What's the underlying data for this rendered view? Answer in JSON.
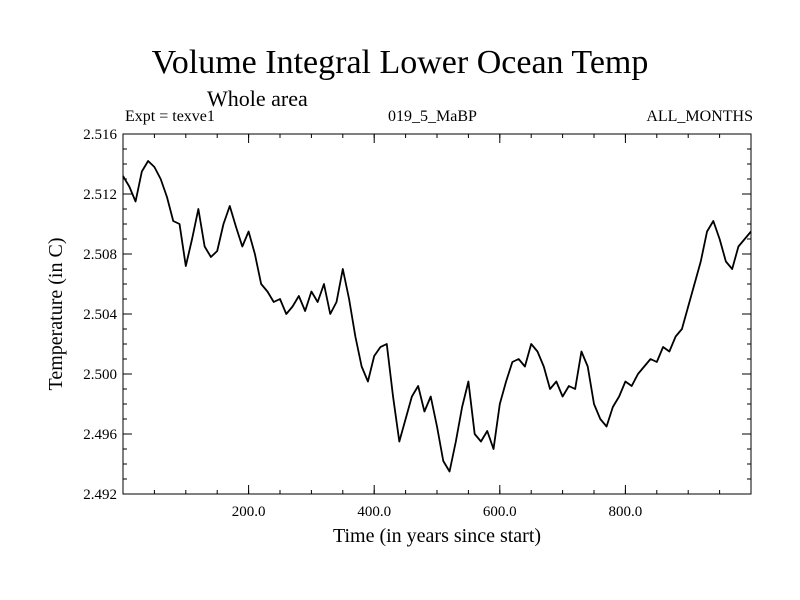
{
  "title": "Volume Integral Lower Ocean Temp",
  "subtitle": "Whole area",
  "left_label": "Expt = texve1",
  "center_label": "019_5_MaBP",
  "right_label": "ALL_MONTHS",
  "chart_data": {
    "type": "line",
    "title": "Volume Integral Lower Ocean Temp",
    "subtitle": "Whole area",
    "xlabel": "Time (in years since start)",
    "ylabel": "Temperature (in C)",
    "xlim": [
      0,
      1000
    ],
    "ylim": [
      2.492,
      2.516
    ],
    "xticks": [
      200,
      400,
      600,
      800
    ],
    "xtick_labels": [
      "200.0",
      "400.0",
      "600.0",
      "800.0"
    ],
    "yticks": [
      2.492,
      2.496,
      2.5,
      2.504,
      2.508,
      2.512,
      2.516
    ],
    "ytick_labels": [
      "2.492",
      "2.496",
      "2.500",
      "2.504",
      "2.508",
      "2.512",
      "2.516"
    ],
    "grid": false,
    "line_color": "#000000",
    "series": [
      {
        "name": "Volume Integral Lower Ocean Temp",
        "x": [
          0,
          10,
          20,
          30,
          40,
          50,
          60,
          70,
          80,
          90,
          100,
          110,
          120,
          130,
          140,
          150,
          160,
          170,
          180,
          190,
          200,
          210,
          220,
          230,
          240,
          250,
          260,
          270,
          280,
          290,
          300,
          310,
          320,
          330,
          340,
          350,
          360,
          370,
          380,
          390,
          400,
          410,
          420,
          430,
          440,
          450,
          460,
          470,
          480,
          490,
          500,
          510,
          520,
          530,
          540,
          550,
          560,
          570,
          580,
          590,
          600,
          610,
          620,
          630,
          640,
          650,
          660,
          670,
          680,
          690,
          700,
          710,
          720,
          730,
          740,
          750,
          760,
          770,
          780,
          790,
          800,
          810,
          820,
          830,
          840,
          850,
          860,
          870,
          880,
          890,
          900,
          910,
          920,
          930,
          940,
          950,
          960,
          970,
          980,
          990,
          1000
        ],
        "values": [
          2.5132,
          2.5125,
          2.5115,
          2.5135,
          2.5142,
          2.5138,
          2.513,
          2.5118,
          2.5102,
          2.51,
          2.5072,
          2.509,
          2.511,
          2.5085,
          2.5078,
          2.5082,
          2.51,
          2.5112,
          2.5098,
          2.5085,
          2.5095,
          2.508,
          2.506,
          2.5055,
          2.5048,
          2.505,
          2.504,
          2.5045,
          2.5052,
          2.5042,
          2.5055,
          2.5048,
          2.506,
          2.504,
          2.5048,
          2.507,
          2.505,
          2.5025,
          2.5005,
          2.4995,
          2.5012,
          2.5018,
          2.502,
          2.4985,
          2.4955,
          2.497,
          2.4985,
          2.4992,
          2.4975,
          2.4985,
          2.4965,
          2.4942,
          2.4935,
          2.4955,
          2.4978,
          2.4995,
          2.496,
          2.4955,
          2.4962,
          2.495,
          2.498,
          2.4995,
          2.5008,
          2.501,
          2.5005,
          2.502,
          2.5015,
          2.5005,
          2.499,
          2.4995,
          2.4985,
          2.4992,
          2.499,
          2.5015,
          2.5005,
          2.498,
          2.497,
          2.4965,
          2.4978,
          2.4985,
          2.4995,
          2.4992,
          2.5,
          2.5005,
          2.501,
          2.5008,
          2.5018,
          2.5015,
          2.5025,
          2.503,
          2.5045,
          2.506,
          2.5075,
          2.5095,
          2.5102,
          2.509,
          2.5075,
          2.507,
          2.5085,
          2.509,
          2.5095
        ]
      }
    ]
  }
}
